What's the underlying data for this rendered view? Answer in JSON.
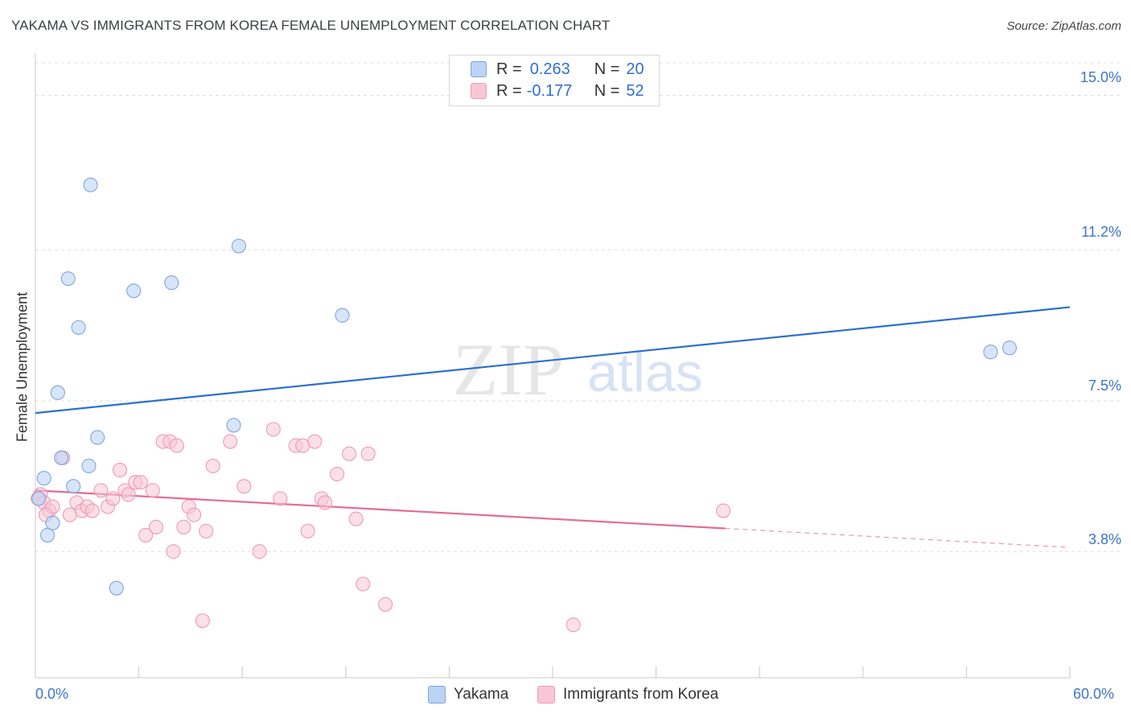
{
  "title": "YAKAMA VS IMMIGRANTS FROM KOREA FEMALE UNEMPLOYMENT CORRELATION CHART",
  "source": "Source: ZipAtlas.com",
  "watermark": {
    "zip": "ZIP",
    "atlas": "atlas"
  },
  "legend": {
    "rows": [
      {
        "r_label": "R =",
        "r_value": "0.263",
        "n_label": "N =",
        "n_value": "20"
      },
      {
        "r_label": "R =",
        "r_value": "-0.177",
        "n_label": "N =",
        "n_value": "52"
      }
    ]
  },
  "chart_data": {
    "type": "scatter",
    "title": "YAKAMA VS IMMIGRANTS FROM KOREA FEMALE UNEMPLOYMENT CORRELATION CHART",
    "xlabel": "",
    "ylabel": "Female Unemployment",
    "xlim": [
      0,
      60
    ],
    "ylim": [
      0.7,
      15.8
    ],
    "x_tick_labels": [
      "0.0%",
      "60.0%"
    ],
    "y_ticks": [
      3.8,
      7.5,
      11.2,
      15.0
    ],
    "y_tick_labels": [
      "3.8%",
      "7.5%",
      "11.2%",
      "15.0%"
    ],
    "colors": {
      "Yakama": "#7ea6e0",
      "Immigrants from Korea": "#ee9ab5",
      "yakama_line": "#2a6fcf",
      "korea_line": "#e56b93"
    },
    "series": [
      {
        "name": "Yakama",
        "points": [
          [
            3.2,
            12.8
          ],
          [
            11.8,
            11.3
          ],
          [
            1.9,
            10.5
          ],
          [
            5.7,
            10.2
          ],
          [
            7.9,
            10.4
          ],
          [
            17.8,
            9.6
          ],
          [
            2.5,
            9.3
          ],
          [
            55.4,
            8.7
          ],
          [
            56.5,
            8.8
          ],
          [
            1.3,
            7.7
          ],
          [
            11.5,
            6.9
          ],
          [
            3.6,
            6.6
          ],
          [
            1.5,
            6.1
          ],
          [
            3.1,
            5.9
          ],
          [
            0.5,
            5.6
          ],
          [
            2.2,
            5.4
          ],
          [
            0.2,
            5.1
          ],
          [
            1.0,
            4.5
          ],
          [
            0.7,
            4.2
          ],
          [
            4.7,
            2.9
          ]
        ],
        "trend": {
          "x": [
            0,
            60
          ],
          "y": [
            7.2,
            9.8
          ],
          "style": "solid"
        }
      },
      {
        "name": "Immigrants from Korea",
        "points": [
          [
            0.3,
            5.2
          ],
          [
            0.5,
            5.0
          ],
          [
            0.8,
            4.8
          ],
          [
            1.0,
            4.9
          ],
          [
            1.6,
            6.1
          ],
          [
            2.0,
            4.7
          ],
          [
            2.4,
            5.0
          ],
          [
            2.7,
            4.8
          ],
          [
            3.0,
            4.9
          ],
          [
            3.3,
            4.8
          ],
          [
            3.8,
            5.3
          ],
          [
            4.2,
            4.9
          ],
          [
            4.5,
            5.1
          ],
          [
            4.9,
            5.8
          ],
          [
            5.2,
            5.3
          ],
          [
            5.4,
            5.2
          ],
          [
            5.8,
            5.5
          ],
          [
            6.1,
            5.5
          ],
          [
            6.4,
            4.2
          ],
          [
            6.8,
            5.3
          ],
          [
            7.0,
            4.4
          ],
          [
            7.4,
            6.5
          ],
          [
            7.8,
            6.5
          ],
          [
            8.2,
            6.4
          ],
          [
            8.0,
            3.8
          ],
          [
            8.6,
            4.4
          ],
          [
            8.9,
            4.9
          ],
          [
            9.2,
            4.7
          ],
          [
            9.7,
            2.1
          ],
          [
            9.9,
            4.3
          ],
          [
            10.3,
            5.9
          ],
          [
            11.3,
            6.5
          ],
          [
            12.1,
            5.4
          ],
          [
            13.0,
            3.8
          ],
          [
            13.8,
            6.8
          ],
          [
            14.2,
            5.1
          ],
          [
            15.1,
            6.4
          ],
          [
            15.5,
            6.4
          ],
          [
            15.8,
            4.3
          ],
          [
            16.2,
            6.5
          ],
          [
            16.6,
            5.1
          ],
          [
            16.8,
            5.0
          ],
          [
            17.5,
            5.7
          ],
          [
            18.2,
            6.2
          ],
          [
            18.6,
            4.6
          ],
          [
            19.0,
            3.0
          ],
          [
            19.3,
            6.2
          ],
          [
            20.3,
            2.5
          ],
          [
            31.2,
            2.0
          ],
          [
            39.9,
            4.8
          ],
          [
            0.15,
            5.1
          ],
          [
            0.6,
            4.7
          ]
        ],
        "trend": {
          "x": [
            0,
            60
          ],
          "y": [
            5.3,
            3.9
          ],
          "solid_until_x": 40,
          "style": "solid-then-dashed"
        }
      }
    ]
  },
  "bottom_legend": {
    "series_a": "Yakama",
    "series_b": "Immigrants from Korea"
  }
}
